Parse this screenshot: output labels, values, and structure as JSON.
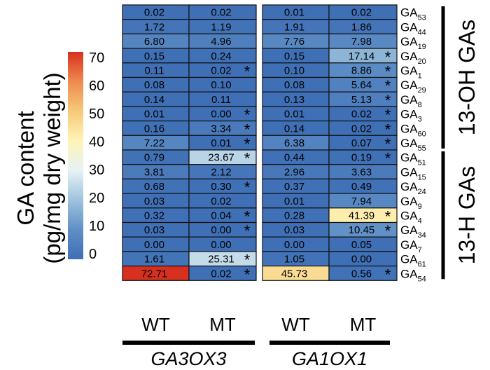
{
  "chart_data": {
    "type": "heatmap",
    "colorbar": {
      "title": "GA content",
      "subtitle": "(pg/mg dry weight)",
      "ticks": [
        "70",
        "60",
        "50",
        "40",
        "30",
        "20",
        "10",
        "0"
      ],
      "range": [
        0,
        70
      ],
      "colors": [
        "#3f6fb5",
        "#5f8fc6",
        "#9ec3dd",
        "#e6f2f5",
        "#fff4b6",
        "#f7c979",
        "#ee8a4e",
        "#d7301f"
      ]
    },
    "column_labels": [
      "WT",
      "MT",
      "WT",
      "MT"
    ],
    "groups": [
      {
        "name": "GA3OX3",
        "columns": [
          0,
          1
        ]
      },
      {
        "name": "GA1OX1",
        "columns": [
          2,
          3
        ]
      }
    ],
    "row_groups": [
      {
        "name": "13-OH GAs",
        "rows": [
          0,
          9
        ]
      },
      {
        "name": "13-H GAs",
        "rows": [
          10,
          18
        ]
      }
    ],
    "rows": [
      {
        "base": "GA",
        "sub": "53",
        "values": [
          "0.02",
          "0.02",
          "0.01",
          "0.02"
        ],
        "sig": [
          false,
          false,
          false,
          false
        ]
      },
      {
        "base": "GA",
        "sub": "44",
        "values": [
          "1.72",
          "1.19",
          "1.91",
          "1.86"
        ],
        "sig": [
          false,
          false,
          false,
          false
        ]
      },
      {
        "base": "GA",
        "sub": "19",
        "values": [
          "6.80",
          "4.96",
          "7.76",
          "7.98"
        ],
        "sig": [
          false,
          false,
          false,
          false
        ]
      },
      {
        "base": "GA",
        "sub": "20",
        "values": [
          "0.15",
          "0.24",
          "0.15",
          "17.14"
        ],
        "sig": [
          false,
          false,
          false,
          true
        ]
      },
      {
        "base": "GA",
        "sub": "1",
        "values": [
          "0.11",
          "0.02",
          "0.10",
          "8.86"
        ],
        "sig": [
          false,
          true,
          false,
          true
        ]
      },
      {
        "base": "GA",
        "sub": "29",
        "values": [
          "0.08",
          "0.10",
          "0.08",
          "5.64"
        ],
        "sig": [
          false,
          false,
          false,
          true
        ]
      },
      {
        "base": "GA",
        "sub": "8",
        "values": [
          "0.14",
          "0.11",
          "0.13",
          "5.13"
        ],
        "sig": [
          false,
          false,
          false,
          true
        ]
      },
      {
        "base": "GA",
        "sub": "3",
        "values": [
          "0.01",
          "0.00",
          "0.01",
          "0.02"
        ],
        "sig": [
          false,
          true,
          false,
          true
        ]
      },
      {
        "base": "GA",
        "sub": "60",
        "values": [
          "0.16",
          "3.34",
          "0.14",
          "0.02"
        ],
        "sig": [
          false,
          true,
          false,
          true
        ]
      },
      {
        "base": "GA",
        "sub": "55",
        "values": [
          "7.22",
          "0.01",
          "6.38",
          "0.07"
        ],
        "sig": [
          false,
          true,
          false,
          true
        ]
      },
      {
        "base": "GA",
        "sub": "51",
        "values": [
          "0.79",
          "23.67",
          "0.44",
          "0.19"
        ],
        "sig": [
          false,
          true,
          false,
          true
        ]
      },
      {
        "base": "GA",
        "sub": "15",
        "values": [
          "3.81",
          "2.12",
          "2.96",
          "3.63"
        ],
        "sig": [
          false,
          false,
          false,
          false
        ]
      },
      {
        "base": "GA",
        "sub": "24",
        "values": [
          "0.68",
          "0.30",
          "0.37",
          "0.49"
        ],
        "sig": [
          false,
          true,
          false,
          false
        ]
      },
      {
        "base": "GA",
        "sub": "9",
        "values": [
          "0.03",
          "0.02",
          "0.01",
          "7.94"
        ],
        "sig": [
          false,
          false,
          false,
          false
        ]
      },
      {
        "base": "GA",
        "sub": "4",
        "values": [
          "0.32",
          "0.04",
          "0.28",
          "41.39"
        ],
        "sig": [
          false,
          true,
          false,
          true
        ]
      },
      {
        "base": "GA",
        "sub": "34",
        "values": [
          "0.03",
          "0.00",
          "0.03",
          "10.45"
        ],
        "sig": [
          false,
          true,
          false,
          true
        ]
      },
      {
        "base": "GA",
        "sub": "7",
        "values": [
          "0.00",
          "0.00",
          "0.00",
          "0.05"
        ],
        "sig": [
          false,
          false,
          false,
          false
        ]
      },
      {
        "base": "GA",
        "sub": "61",
        "values": [
          "1.61",
          "25.31",
          "1.05",
          "0.00"
        ],
        "sig": [
          false,
          true,
          false,
          false
        ]
      },
      {
        "base": "GA",
        "sub": "54",
        "values": [
          "72.71",
          "0.02",
          "45.73",
          "0.56"
        ],
        "sig": [
          false,
          true,
          false,
          true
        ]
      }
    ],
    "sig_marker": "*"
  }
}
